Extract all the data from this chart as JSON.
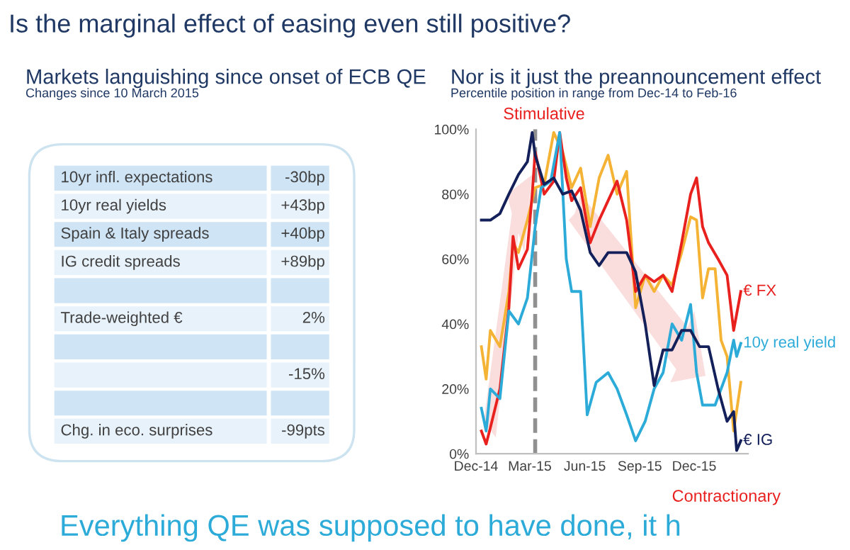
{
  "chart_data": [
    {
      "type": "other",
      "title": "Markets languishing since onset of ECB QE",
      "subtitle": "Changes since 10 March 2015",
      "categories": [
        "10yr infl. expectations",
        "10yr real yields",
        "Spain & Italy spreads",
        "IG credit spreads",
        null,
        "Trade-weighted €",
        null,
        null,
        null,
        "Chg. in eco. surprises"
      ],
      "value_labels": [
        "-30bp",
        "+43bp",
        "+40bp",
        "+89bp",
        null,
        "2%",
        null,
        "-15%",
        null,
        "-99pts"
      ],
      "annotations": [
        "Is the marginal effect of easing even still positive?",
        "Everything QE was supposed to have done, it h"
      ]
    },
    {
      "type": "line",
      "title": "Nor is it just the preannouncement effect",
      "subtitle": "Percentile position in range from Dec-14 to Feb-16",
      "xlim": [
        "2014-12-01",
        "2016-02-29"
      ],
      "xticks": [
        {
          "value": "2014-12-01",
          "label": "Dec-14"
        },
        {
          "value": "2015-03-01",
          "label": "Mar-15"
        },
        {
          "value": "2015-06-01",
          "label": "Jun-15"
        },
        {
          "value": "2015-09-01",
          "label": "Sep-15"
        },
        {
          "value": "2015-12-01",
          "label": "Dec-15"
        }
      ],
      "ylim": [
        0,
        100
      ],
      "yticks": [
        {
          "value": 0,
          "label": "0%"
        },
        {
          "value": 20,
          "label": "20%"
        },
        {
          "value": 40,
          "label": "40%"
        },
        {
          "value": 60,
          "label": "60%"
        },
        {
          "value": 80,
          "label": "80%"
        },
        {
          "value": 100,
          "label": "100%"
        }
      ],
      "grid": false,
      "legend": false,
      "marker": "none",
      "line_style": "solid",
      "ref_lines": [
        {
          "axis": "x",
          "value": "2015-03-10",
          "label": null,
          "color": "#909090",
          "line_style": "dashed"
        }
      ],
      "annotations": [
        "Stimulative",
        "Contractionary"
      ],
      "series": [
        {
          "name": null,
          "color": "#f5b335",
          "x": [
            "2014-12-10",
            "2014-12-18",
            "2014-12-25",
            "2015-01-10",
            "2015-01-25",
            "2015-02-01",
            "2015-02-10",
            "2015-02-25",
            "2015-03-10",
            "2015-03-25",
            "2015-04-10",
            "2015-04-25",
            "2015-05-10",
            "2015-05-25",
            "2015-06-10",
            "2015-06-25",
            "2015-07-10",
            "2015-07-25",
            "2015-08-10",
            "2015-08-25",
            "2015-09-10",
            "2015-09-25",
            "2015-10-10",
            "2015-10-25",
            "2015-11-10",
            "2015-11-25",
            "2015-12-05",
            "2015-12-15",
            "2015-12-25",
            "2016-01-05",
            "2016-01-15",
            "2016-01-25",
            "2016-02-05",
            "2016-02-17"
          ],
          "values": [
            33,
            23,
            38,
            33,
            50,
            65,
            62,
            72,
            82,
            83,
            99,
            93,
            82,
            88,
            70,
            85,
            92,
            80,
            87,
            45,
            55,
            50,
            55,
            52,
            62,
            73,
            72,
            48,
            57,
            57,
            35,
            30,
            7,
            22
          ]
        },
        {
          "name": "€ FX",
          "color": "#e8201e",
          "x": [
            "2014-12-10",
            "2014-12-18",
            "2014-12-25",
            "2015-01-10",
            "2015-01-25",
            "2015-02-01",
            "2015-02-10",
            "2015-02-25",
            "2015-03-05",
            "2015-03-10",
            "2015-03-25",
            "2015-04-10",
            "2015-04-20",
            "2015-05-01",
            "2015-05-10",
            "2015-05-25",
            "2015-06-10",
            "2015-06-25",
            "2015-07-10",
            "2015-07-25",
            "2015-08-10",
            "2015-08-25",
            "2015-09-10",
            "2015-09-25",
            "2015-10-10",
            "2015-10-25",
            "2015-11-10",
            "2015-11-25",
            "2015-12-05",
            "2015-12-15",
            "2015-12-25",
            "2016-01-10",
            "2016-01-25",
            "2016-02-05",
            "2016-02-17"
          ],
          "values": [
            7,
            3,
            8,
            20,
            45,
            67,
            57,
            63,
            80,
            93,
            80,
            84,
            99,
            85,
            78,
            82,
            65,
            72,
            78,
            84,
            72,
            50,
            55,
            53,
            55,
            50,
            65,
            80,
            85,
            70,
            65,
            60,
            55,
            38,
            50
          ]
        },
        {
          "name": "10y real yield",
          "color": "#2cabd9",
          "x": [
            "2014-12-10",
            "2014-12-18",
            "2014-12-25",
            "2015-01-10",
            "2015-01-25",
            "2015-02-10",
            "2015-02-25",
            "2015-03-10",
            "2015-03-20",
            "2015-04-05",
            "2015-04-20",
            "2015-05-01",
            "2015-05-10",
            "2015-05-25",
            "2015-06-05",
            "2015-06-20",
            "2015-07-10",
            "2015-07-25",
            "2015-08-10",
            "2015-08-25",
            "2015-09-10",
            "2015-09-25",
            "2015-10-10",
            "2015-10-25",
            "2015-11-10",
            "2015-11-25",
            "2015-12-05",
            "2015-12-15",
            "2016-01-05",
            "2016-01-25",
            "2016-02-05",
            "2016-02-10",
            "2016-02-17"
          ],
          "values": [
            14,
            7,
            20,
            17,
            44,
            40,
            48,
            70,
            82,
            84,
            99,
            60,
            50,
            50,
            12,
            22,
            25,
            20,
            12,
            4,
            10,
            20,
            25,
            40,
            35,
            46,
            25,
            15,
            15,
            25,
            35,
            30,
            34
          ]
        },
        {
          "name": "€ IG",
          "color": "#14205a",
          "x": [
            "2014-12-10",
            "2014-12-25",
            "2015-01-10",
            "2015-01-25",
            "2015-02-10",
            "2015-02-25",
            "2015-03-05",
            "2015-03-10",
            "2015-03-25",
            "2015-04-10",
            "2015-04-25",
            "2015-05-10",
            "2015-05-25",
            "2015-06-10",
            "2015-06-25",
            "2015-07-10",
            "2015-07-25",
            "2015-08-10",
            "2015-08-25",
            "2015-09-10",
            "2015-09-25",
            "2015-10-10",
            "2015-10-25",
            "2015-11-10",
            "2015-11-25",
            "2015-12-10",
            "2015-12-25",
            "2016-01-10",
            "2016-01-25",
            "2016-02-05",
            "2016-02-10",
            "2016-02-17"
          ],
          "values": [
            72,
            72,
            74,
            80,
            86,
            90,
            99,
            92,
            83,
            85,
            80,
            81,
            75,
            62,
            58,
            62,
            62,
            62,
            56,
            40,
            21,
            32,
            32,
            38,
            38,
            33,
            33,
            20,
            10,
            13,
            1,
            4
          ]
        }
      ]
    }
  ]
}
